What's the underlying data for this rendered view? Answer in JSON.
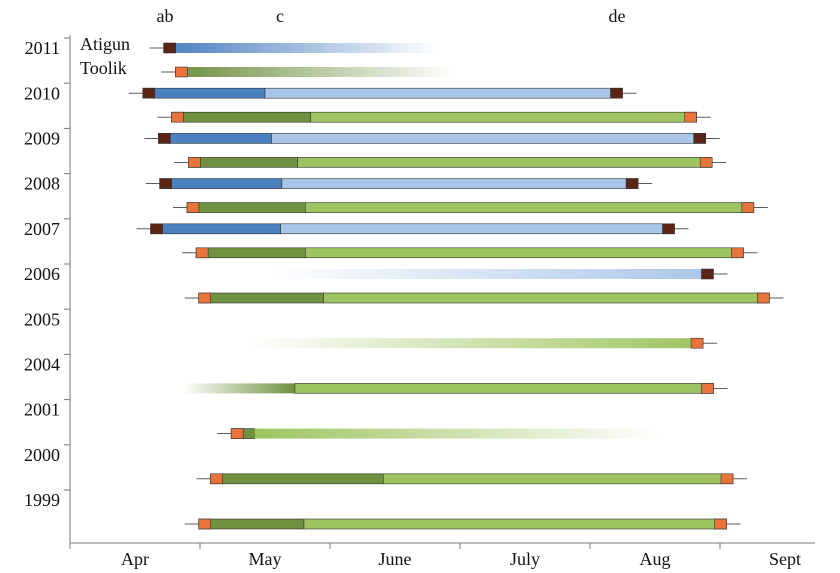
{
  "chart_data": {
    "type": "phenology-bar",
    "annotations": [
      "ab",
      "c",
      "de"
    ],
    "categories": [
      "2011",
      "2010",
      "2009",
      "2008",
      "2007",
      "2006",
      "2005",
      "2004",
      "2001",
      "2000",
      "1999"
    ],
    "months": [
      "Apr",
      "May",
      "June",
      "July",
      "Aug",
      "Sept"
    ],
    "xlim": [
      0,
      5.73
    ],
    "series": [
      {
        "name": "Atigun",
        "color": "#4a7fc0",
        "light_color": "#a9c5e8",
        "marker_color": "#5a2416",
        "values": [
          {
            "start": 0.72,
            "fade_to": 2.85
          },
          {
            "start": 0.56,
            "mid": 1.5,
            "end": 4.25
          },
          {
            "start": 0.68,
            "mid": 1.55,
            "end": 4.89
          },
          {
            "start": 0.69,
            "mid": 1.63,
            "end": 4.37
          },
          {
            "start": 0.62,
            "mid": 1.62,
            "end": 4.65
          },
          {
            "fade_from": 1.54,
            "end": 4.95
          },
          null,
          null,
          null,
          null,
          null
        ]
      },
      {
        "name": "Toolik",
        "color": "#6f9140",
        "light_color": "#9dc460",
        "marker_color": "#e8743b",
        "values": [
          {
            "start": 0.81,
            "fade_to": 2.96
          },
          {
            "start": 0.78,
            "mid": 1.85,
            "end": 4.82
          },
          {
            "start": 0.91,
            "mid": 1.75,
            "end": 4.94
          },
          {
            "start": 0.9,
            "mid": 1.81,
            "end": 5.26
          },
          {
            "start": 0.97,
            "mid": 1.81,
            "end": 5.18
          },
          {
            "start": 0.99,
            "mid": 1.95,
            "end": 5.38
          },
          {
            "fade_from": 1.38,
            "end": 4.87
          },
          {
            "fade_from": 0.87,
            "mid": 1.73,
            "end": 4.95
          },
          {
            "start": 1.24,
            "mid": 1.42,
            "fade_to": 4.54
          },
          {
            "start": 1.08,
            "mid": 2.41,
            "end": 5.1
          },
          {
            "start": 0.99,
            "mid": 1.8,
            "end": 5.05
          }
        ]
      }
    ]
  }
}
